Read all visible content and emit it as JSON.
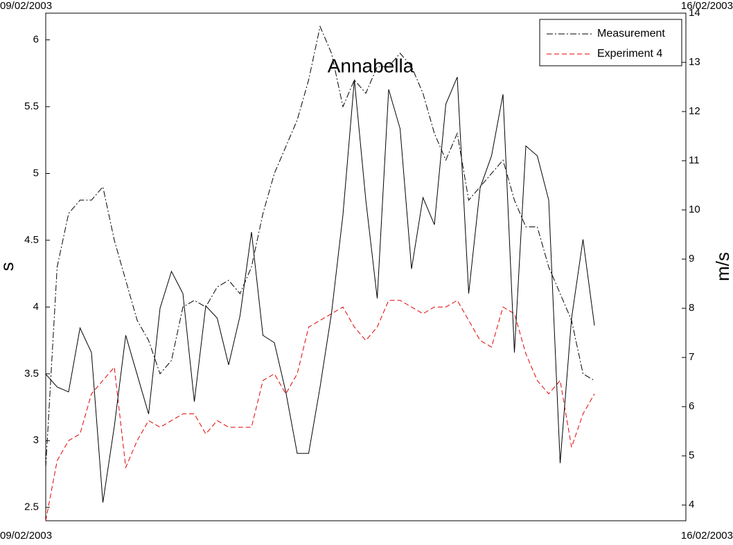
{
  "chart_data": {
    "type": "line",
    "title": "Annabella",
    "ylabel": "s",
    "y2label": "m/s",
    "xlim": [
      0,
      7
    ],
    "xticks": [
      {
        "value": 0,
        "label": "09/02/2003"
      },
      {
        "value": 7,
        "label": "16/02/2003"
      }
    ],
    "ylim": [
      2.4,
      6.2
    ],
    "yticks": [
      2.5,
      3,
      3.5,
      4,
      4.5,
      5,
      5.5,
      6
    ],
    "y2lim": [
      3.68,
      14
    ],
    "y2ticks": [
      4,
      5,
      6,
      7,
      8,
      9,
      10,
      11,
      12,
      13,
      14
    ],
    "x": [
      0,
      0.125,
      0.25,
      0.375,
      0.5,
      0.625,
      0.75,
      0.875,
      1,
      1.125,
      1.25,
      1.375,
      1.5,
      1.625,
      1.75,
      1.875,
      2,
      2.125,
      2.25,
      2.375,
      2.5,
      2.625,
      2.75,
      2.875,
      3,
      3.125,
      3.25,
      3.375,
      3.5,
      3.625,
      3.75,
      3.875,
      4,
      4.125,
      4.25,
      4.375,
      4.5,
      4.625,
      4.75,
      4.875,
      5,
      5.125,
      5.25,
      5.375,
      5.5,
      5.625,
      5.75,
      5.875,
      6
    ],
    "legend": "upper right",
    "series": [
      {
        "name": "Measurement",
        "color": "#000000",
        "linestyle": "dashdot",
        "values": [
          2.8,
          4.3,
          4.7,
          4.8,
          4.8,
          4.9,
          4.5,
          4.2,
          3.9,
          3.75,
          3.5,
          3.6,
          4.0,
          4.05,
          4.0,
          4.15,
          4.2,
          4.1,
          4.3,
          4.7,
          5.0,
          5.2,
          5.4,
          5.7,
          6.1,
          5.9,
          5.5,
          5.7,
          5.6,
          5.8,
          5.8,
          5.9,
          5.8,
          5.6,
          5.3,
          5.1,
          5.3,
          4.8,
          4.9,
          5.0,
          5.1,
          4.8,
          4.6,
          4.6,
          4.3,
          4.1,
          3.9,
          3.5,
          3.45
        ]
      },
      {
        "name": "Experiment 4",
        "color": "#e00000",
        "linestyle": "dashed",
        "values": [
          2.4,
          2.85,
          3.0,
          3.05,
          3.35,
          3.45,
          3.55,
          2.8,
          3.0,
          3.15,
          3.1,
          3.15,
          3.2,
          3.2,
          3.05,
          3.15,
          3.1,
          3.1,
          3.1,
          3.45,
          3.5,
          3.35,
          3.5,
          3.85,
          3.9,
          3.95,
          4.0,
          3.85,
          3.75,
          3.85,
          4.05,
          4.05,
          4.0,
          3.95,
          4.0,
          4.0,
          4.05,
          3.9,
          3.75,
          3.7,
          4.0,
          3.95,
          3.65,
          3.45,
          3.35,
          3.45,
          2.95,
          3.2,
          3.35
        ]
      },
      {
        "color": "#000000",
        "linestyle": "solid",
        "axis": "y2",
        "values": [
          6.66,
          6.4,
          6.3,
          7.6,
          7.1,
          4.05,
          5.6,
          7.45,
          6.65,
          5.85,
          8.0,
          8.75,
          8.3,
          6.1,
          8.05,
          7.8,
          6.85,
          7.85,
          9.55,
          7.45,
          7.3,
          6.3,
          5.05,
          5.05,
          6.4,
          7.9,
          9.9,
          12.65,
          10.2,
          8.2,
          12.45,
          11.65,
          8.8,
          10.25,
          9.7,
          12.15,
          12.7,
          8.3,
          10.45,
          11.1,
          12.35,
          7.1,
          11.3,
          11.1,
          10.2,
          4.85,
          7.8,
          9.4,
          7.65
        ]
      }
    ]
  }
}
